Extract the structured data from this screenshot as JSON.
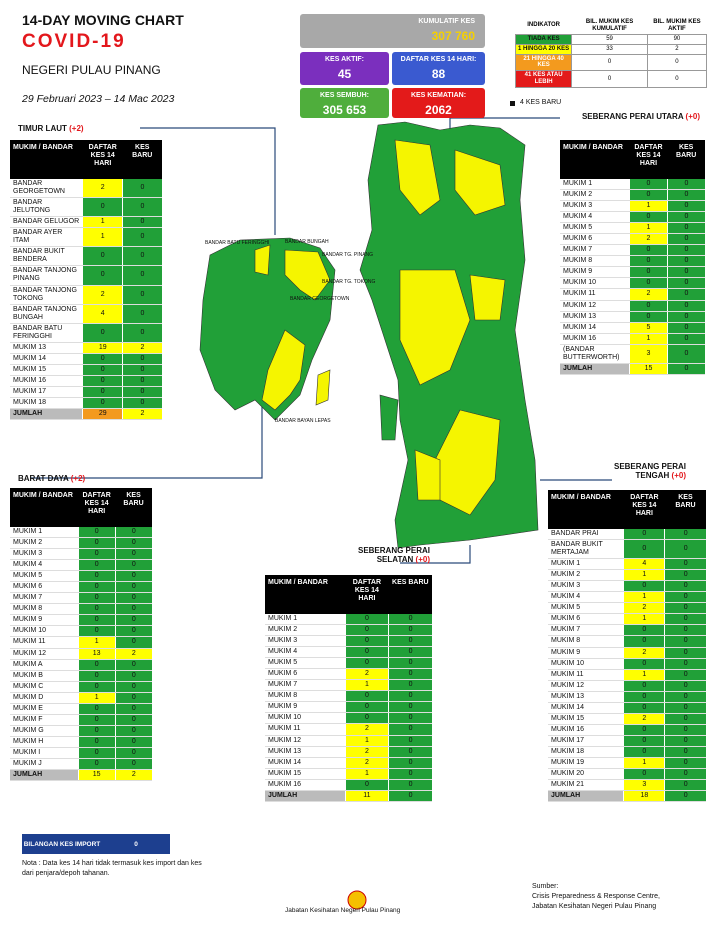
{
  "header": {
    "title": "14-DAY MOVING CHART",
    "subtitle": "COVID-19",
    "state": "NEGERI PULAU PINANG",
    "period": "29 Februari 2023 –  14 Mac 2023"
  },
  "stats": {
    "cumulative": {
      "label": "KUMULATIF KES",
      "value": "307 760"
    },
    "active": {
      "label": "KES AKTIF:",
      "value": 45
    },
    "registered_14d": {
      "label": "DAFTAR KES 14 HARI:",
      "value": 88
    },
    "recovered": {
      "label": "KES SEMBUH:",
      "value": "305 653"
    },
    "deaths": {
      "label": "KES KEMATIAN:",
      "value": 2062
    }
  },
  "legend": {
    "headers": [
      "INDIKATOR",
      "BIL. MUKIM KES KUMULATIF",
      "BIL. MUKIM KES AKTIF"
    ],
    "rows": [
      [
        "TIADA KES",
        59,
        90
      ],
      [
        "1 HINGGA 20 KES",
        33,
        2
      ],
      [
        "21 HINGGA 40 KES",
        0,
        0
      ],
      [
        "41 KES ATAU LEBIH",
        0,
        0
      ]
    ],
    "new_cases_marker": "4 KES BARU"
  },
  "tables": [
    {
      "title": "TIMUR LAUT",
      "delta": "(+2)",
      "headers": [
        "MUKIM / BANDAR",
        "DAFTAR KES 14 HARI",
        "KES BARU"
      ],
      "rows": [
        [
          "BANDAR GEORGETOWN",
          2,
          0
        ],
        [
          "BANDAR JELUTONG",
          0,
          0
        ],
        [
          "BANDAR GELUGOR",
          1,
          0
        ],
        [
          "BANDAR AYER ITAM",
          1,
          0
        ],
        [
          "BANDAR BUKIT BENDERA",
          0,
          0
        ],
        [
          "BANDAR TANJONG PINANG",
          0,
          0
        ],
        [
          "BANDAR TANJONG TOKONG",
          2,
          0
        ],
        [
          "BANDAR TANJONG BUNGAH",
          4,
          0
        ],
        [
          "BANDAR BATU FERINGGHI",
          0,
          0
        ],
        [
          "MUKIM 13",
          19,
          2
        ],
        [
          "MUKIM 14",
          0,
          0
        ],
        [
          "MUKIM 15",
          0,
          0
        ],
        [
          "MUKIM 16",
          0,
          0
        ],
        [
          "MUKIM 17",
          0,
          0
        ],
        [
          "MUKIM 18",
          0,
          0
        ]
      ],
      "total": [
        "JUMLAH",
        29,
        2
      ]
    },
    {
      "title": "BARAT DAYA",
      "delta": "(+2)",
      "headers": [
        "MUKIM / BANDAR",
        "DAFTAR KES 14 HARI",
        "KES BARU"
      ],
      "rows": [
        [
          "MUKIM 1",
          0,
          0
        ],
        [
          "MUKIM 2",
          0,
          0
        ],
        [
          "MUKIM 3",
          0,
          0
        ],
        [
          "MUKIM 4",
          0,
          0
        ],
        [
          "MUKIM 5",
          0,
          0
        ],
        [
          "MUKIM 6",
          0,
          0
        ],
        [
          "MUKIM 7",
          0,
          0
        ],
        [
          "MUKIM 8",
          0,
          0
        ],
        [
          "MUKIM 9",
          0,
          0
        ],
        [
          "MUKIM 10",
          0,
          0
        ],
        [
          "MUKIM 11",
          1,
          0
        ],
        [
          "MUKIM 12",
          13,
          2
        ],
        [
          "MUKIM A",
          0,
          0
        ],
        [
          "MUKIM B",
          0,
          0
        ],
        [
          "MUKIM C",
          0,
          0
        ],
        [
          "MUKIM D",
          1,
          0
        ],
        [
          "MUKIM E",
          0,
          0
        ],
        [
          "MUKIM F",
          0,
          0
        ],
        [
          "MUKIM G",
          0,
          0
        ],
        [
          "MUKIM H",
          0,
          0
        ],
        [
          "MUKIM I",
          0,
          0
        ],
        [
          "MUKIM J",
          0,
          0
        ]
      ],
      "total": [
        "JUMLAH",
        15,
        2
      ]
    },
    {
      "title": "SEBERANG PERAI UTARA",
      "delta": "(+0)",
      "headers": [
        "MUKIM / BANDAR",
        "DAFTAR KES 14 HARI",
        "KES BARU"
      ],
      "rows": [
        [
          "MUKIM 1",
          0,
          0
        ],
        [
          "MUKIM 2",
          0,
          0
        ],
        [
          "MUKIM 3",
          1,
          0
        ],
        [
          "MUKIM 4",
          0,
          0
        ],
        [
          "MUKIM 5",
          1,
          0
        ],
        [
          "MUKIM 6",
          2,
          0
        ],
        [
          "MUKIM 7",
          0,
          0
        ],
        [
          "MUKIM 8",
          0,
          0
        ],
        [
          "MUKIM 9",
          0,
          0
        ],
        [
          "MUKIM 10",
          0,
          0
        ],
        [
          "MUKIM 11",
          2,
          0
        ],
        [
          "MUKIM 12",
          0,
          0
        ],
        [
          "MUKIM 13",
          0,
          0
        ],
        [
          "MUKIM 14",
          5,
          0
        ],
        [
          "MUKIM 16",
          1,
          0
        ],
        [
          "(BANDAR BUTTERWORTH)",
          3,
          0
        ]
      ],
      "total": [
        "JUMLAH",
        15,
        0
      ]
    },
    {
      "title": "SEBERANG PERAI TENGAH",
      "delta": "(+0)",
      "headers": [
        "MUKIM / BANDAR",
        "DAFTAR KES 14 HARI",
        "KES BARU"
      ],
      "rows": [
        [
          "BANDAR PRAI",
          0,
          0
        ],
        [
          "BANDAR BUKIT MERTAJAM",
          0,
          0
        ],
        [
          "MUKIM 1",
          4,
          0
        ],
        [
          "MUKIM 2",
          1,
          0
        ],
        [
          "MUKIM 3",
          0,
          0
        ],
        [
          "MUKIM 4",
          1,
          0
        ],
        [
          "MUKIM 5",
          2,
          0
        ],
        [
          "MUKIM 6",
          1,
          0
        ],
        [
          "MUKIM 7",
          0,
          0
        ],
        [
          "MUKIM 8",
          0,
          0
        ],
        [
          "MUKIM 9",
          2,
          0
        ],
        [
          "MUKIM 10",
          0,
          0
        ],
        [
          "MUKIM 11",
          1,
          0
        ],
        [
          "MUKIM 12",
          0,
          0
        ],
        [
          "MUKIM 13",
          0,
          0
        ],
        [
          "MUKIM 14",
          0,
          0
        ],
        [
          "MUKIM 15",
          2,
          0
        ],
        [
          "MUKIM 16",
          0,
          0
        ],
        [
          "MUKIM 17",
          0,
          0
        ],
        [
          "MUKIM 18",
          0,
          0
        ],
        [
          "MUKIM 19",
          1,
          0
        ],
        [
          "MUKIM 20",
          0,
          0
        ],
        [
          "MUKIM 21",
          3,
          0
        ]
      ],
      "total": [
        "JUMLAH",
        18,
        0
      ]
    },
    {
      "title": "SEBERANG PERAI SELATAN",
      "delta": "(+0)",
      "headers": [
        "MUKIM / BANDAR",
        "DAFTAR KES 14 HARI",
        "KES BARU"
      ],
      "rows": [
        [
          "MUKIM 1",
          0,
          0
        ],
        [
          "MUKIM 2",
          0,
          0
        ],
        [
          "MUKIM 3",
          0,
          0
        ],
        [
          "MUKIM 4",
          0,
          0
        ],
        [
          "MUKIM 5",
          0,
          0
        ],
        [
          "MUKIM 6",
          2,
          0
        ],
        [
          "MUKIM 7",
          1,
          0
        ],
        [
          "MUKIM 8",
          0,
          0
        ],
        [
          "MUKIM 9",
          0,
          0
        ],
        [
          "MUKIM 10",
          0,
          0
        ],
        [
          "MUKIM 11",
          2,
          0
        ],
        [
          "MUKIM 12",
          1,
          0
        ],
        [
          "MUKIM 13",
          2,
          0
        ],
        [
          "MUKIM 14",
          2,
          0
        ],
        [
          "MUKIM 15",
          1,
          0
        ],
        [
          "MUKIM 16",
          0,
          0
        ]
      ],
      "total": [
        "JUMLAH",
        11,
        0
      ]
    }
  ],
  "map_labels": [
    "BANDAR BATU FERINGGHI",
    "BANDAR BUNGAH",
    "BANDAR TG. PINANG",
    "BANDAR TG. TOKONG",
    "BANDAR GEORGETOWN",
    "BANDAR BAYAN LEPAS"
  ],
  "import": {
    "label": "BILANGAN KES IMPORT",
    "value": 0
  },
  "note": "Nota : Data kes 14 hari tidak termasuk kes import dan kes dari penjara/depoh tahanan.",
  "source": {
    "label": "Sumber:",
    "lines": [
      "Crisis Preparedness & Response Centre,",
      "Jabatan Kesihatan Negeri Pulau Pinang"
    ]
  },
  "footer": "Jabatan Kesihatan Negeri Pulau Pinang"
}
